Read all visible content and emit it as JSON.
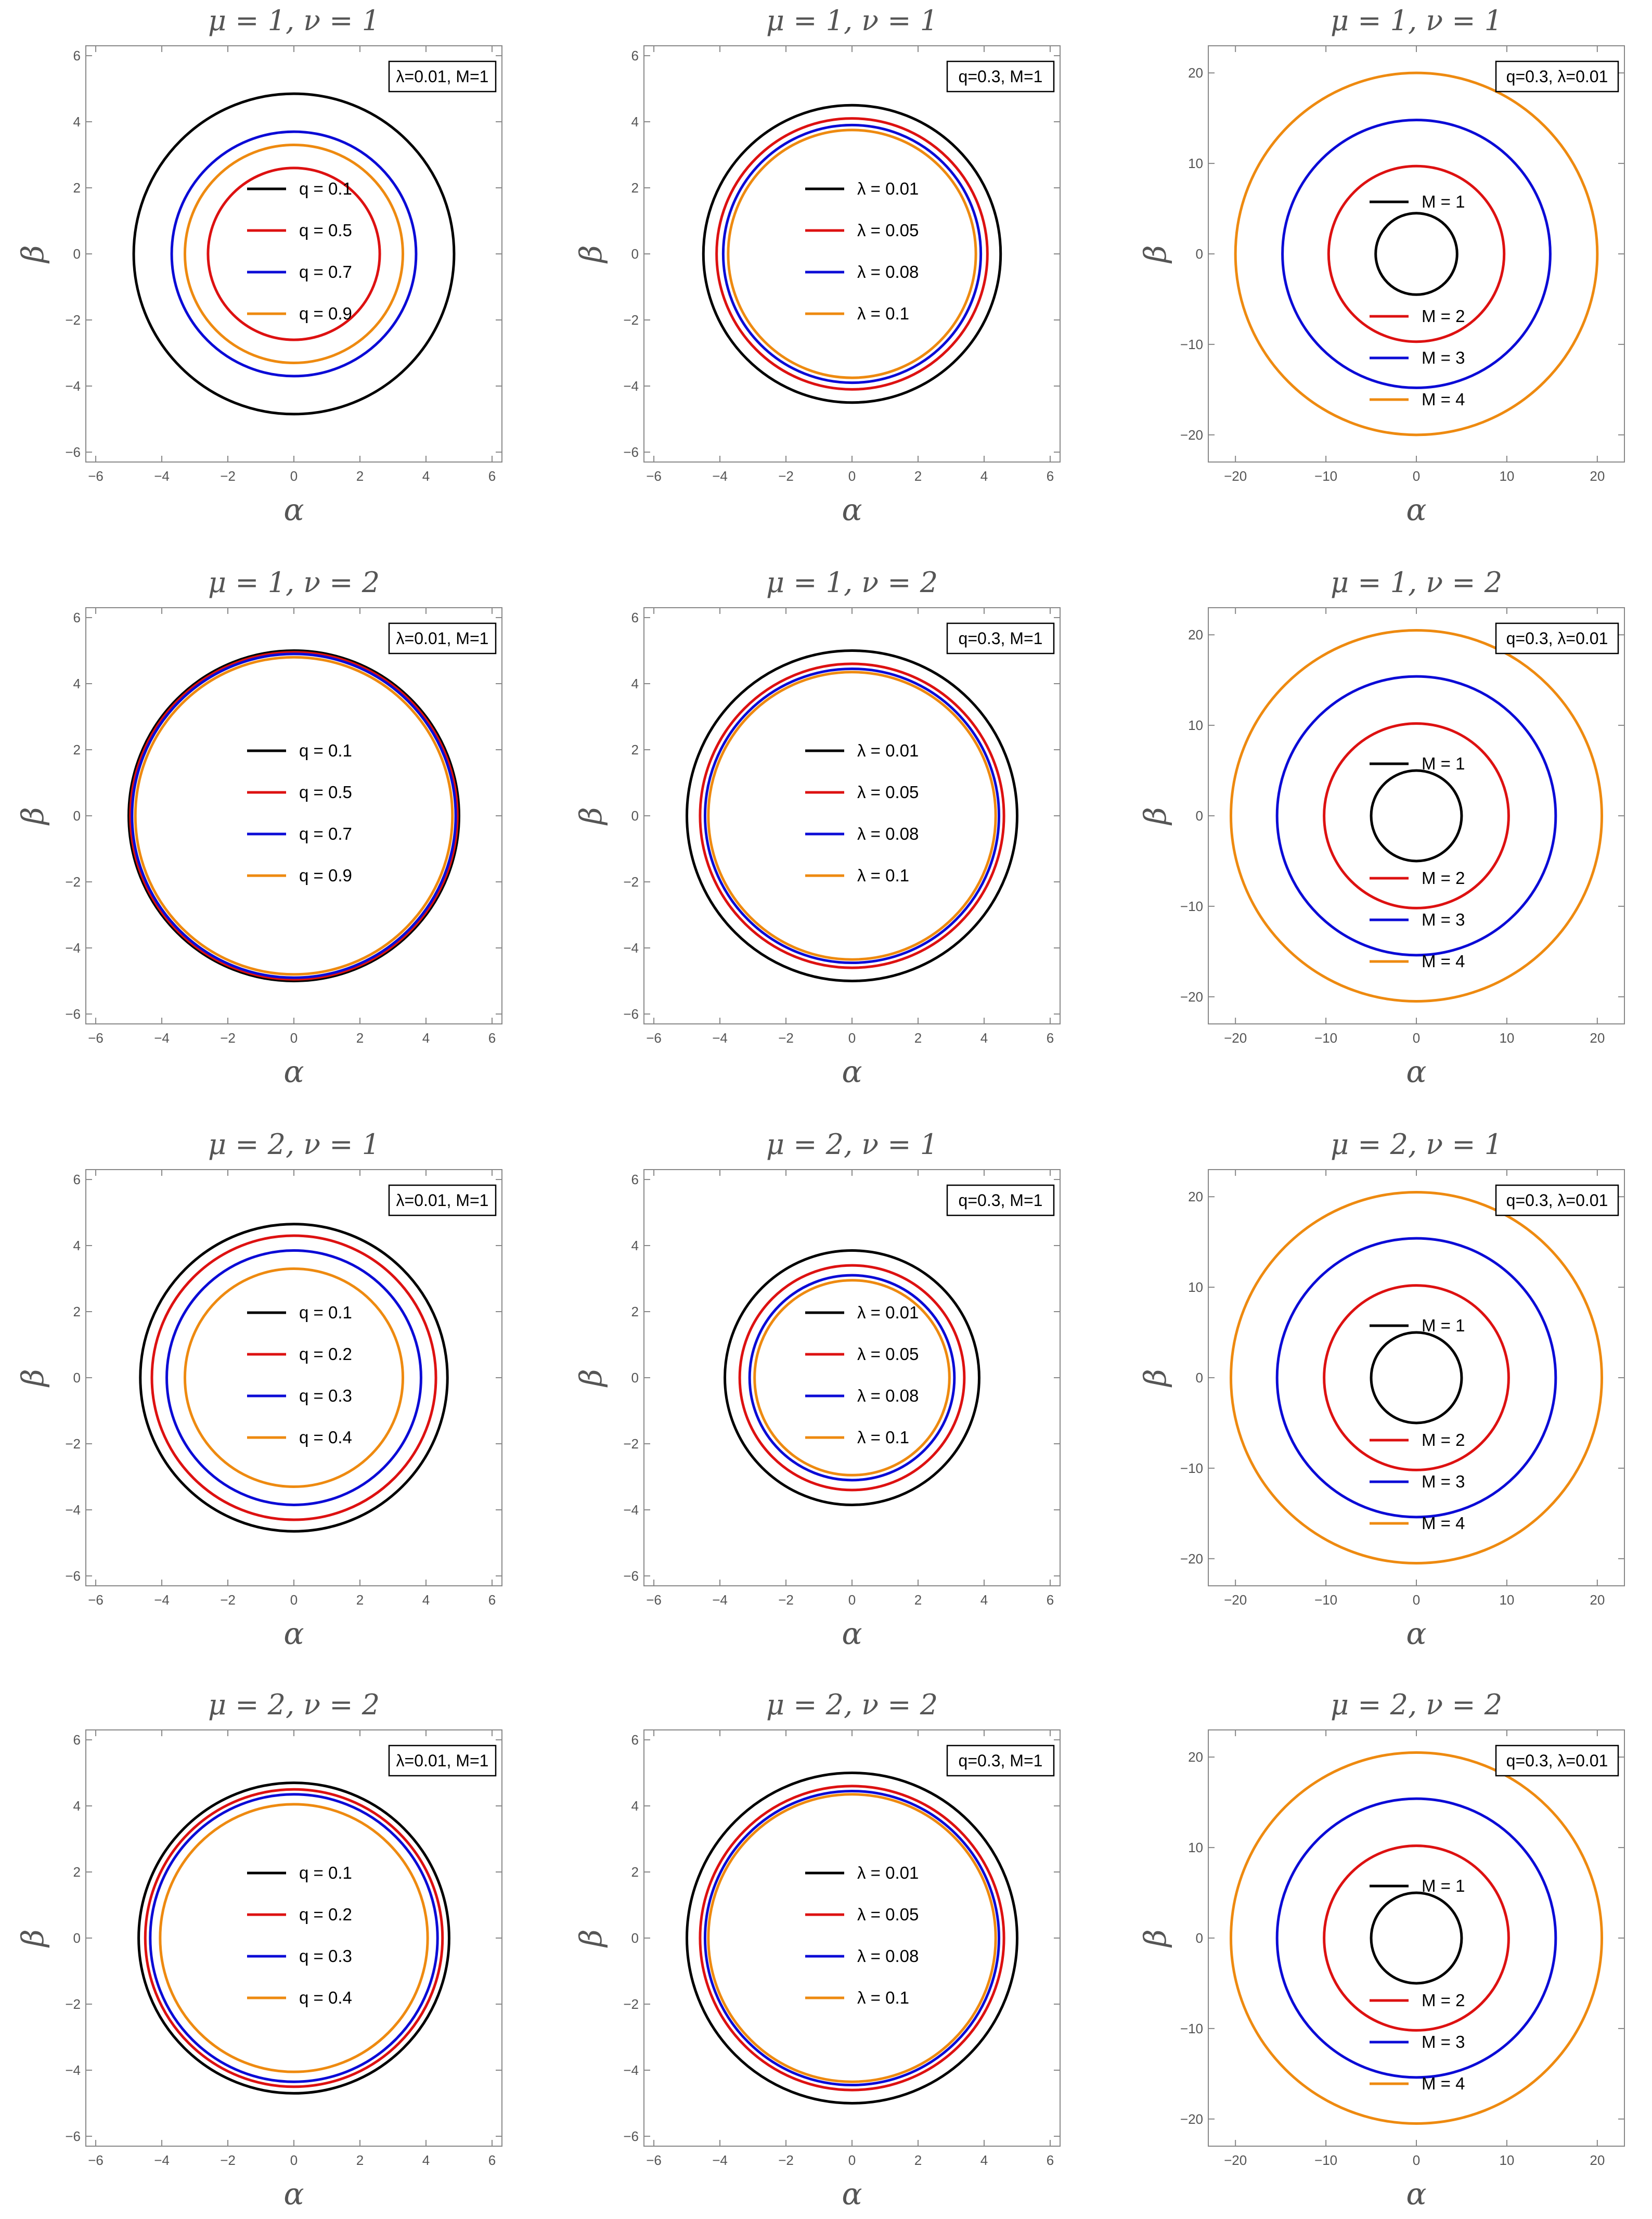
{
  "colors": {
    "black": "#000000",
    "red": "#dd1111",
    "blue": "#0b0bd6",
    "orange": "#ee8a10",
    "text": "#555555",
    "frame": "#888888"
  },
  "chart_data": [
    {
      "type": "line",
      "title": "μ = 1, ν = 1",
      "xlabel": "α",
      "ylabel": "β",
      "param_label": "λ=0.01, M=1",
      "xlim": [
        -6.3,
        6.3
      ],
      "ylim": [
        -6.3,
        6.3
      ],
      "xticks": [
        -6,
        -4,
        -2,
        0,
        2,
        4,
        6
      ],
      "yticks": [
        -6,
        -4,
        -2,
        0,
        2,
        4,
        6
      ],
      "legend_placement": "center",
      "series": [
        {
          "name": "q = 0.1",
          "color": "#000000",
          "radius": 4.85
        },
        {
          "name": "q = 0.5",
          "color": "#dd1111",
          "radius": 2.6
        },
        {
          "name": "q = 0.7",
          "color": "#0b0bd6",
          "radius": 3.7
        },
        {
          "name": "q = 0.9",
          "color": "#ee8a10",
          "radius": 3.3
        }
      ]
    },
    {
      "type": "line",
      "title": "μ = 1, ν = 1",
      "xlabel": "α",
      "ylabel": "β",
      "param_label": "q=0.3, M=1",
      "xlim": [
        -6.3,
        6.3
      ],
      "ylim": [
        -6.3,
        6.3
      ],
      "xticks": [
        -6,
        -4,
        -2,
        0,
        2,
        4,
        6
      ],
      "yticks": [
        -6,
        -4,
        -2,
        0,
        2,
        4,
        6
      ],
      "legend_placement": "center",
      "series": [
        {
          "name": "λ = 0.01",
          "color": "#000000",
          "radius": 4.5
        },
        {
          "name": "λ = 0.05",
          "color": "#dd1111",
          "radius": 4.1
        },
        {
          "name": "λ = 0.08",
          "color": "#0b0bd6",
          "radius": 3.9
        },
        {
          "name": "λ = 0.1",
          "color": "#ee8a10",
          "radius": 3.75
        }
      ]
    },
    {
      "type": "line",
      "title": "μ = 1, ν = 1",
      "xlabel": "α",
      "ylabel": "β",
      "param_label": "q=0.3, λ=0.01",
      "xlim": [
        -23,
        23
      ],
      "ylim": [
        -23,
        23
      ],
      "xticks": [
        -20,
        -10,
        0,
        10,
        20
      ],
      "yticks": [
        -20,
        -10,
        0,
        10,
        20
      ],
      "legend_placement": "center",
      "series": [
        {
          "name": "M = 1",
          "color": "#000000",
          "radius": 4.5
        },
        {
          "name": "M = 2",
          "color": "#dd1111",
          "radius": 9.7
        },
        {
          "name": "M = 3",
          "color": "#0b0bd6",
          "radius": 14.8
        },
        {
          "name": "M = 4",
          "color": "#ee8a10",
          "radius": 20
        }
      ]
    },
    {
      "type": "line",
      "title": "μ = 1, ν = 2",
      "xlabel": "α",
      "ylabel": "β",
      "param_label": "λ=0.01, M=1",
      "xlim": [
        -6.3,
        6.3
      ],
      "ylim": [
        -6.3,
        6.3
      ],
      "xticks": [
        -6,
        -4,
        -2,
        0,
        2,
        4,
        6
      ],
      "yticks": [
        -6,
        -4,
        -2,
        0,
        2,
        4,
        6
      ],
      "legend_placement": "center",
      "series": [
        {
          "name": "q = 0.1",
          "color": "#000000",
          "radius": 5.0
        },
        {
          "name": "q = 0.5",
          "color": "#dd1111",
          "radius": 4.95
        },
        {
          "name": "q = 0.7",
          "color": "#0b0bd6",
          "radius": 4.9
        },
        {
          "name": "q = 0.9",
          "color": "#ee8a10",
          "radius": 4.8
        }
      ]
    },
    {
      "type": "line",
      "title": "μ = 1, ν = 2",
      "xlabel": "α",
      "ylabel": "β",
      "param_label": "q=0.3, M=1",
      "xlim": [
        -6.3,
        6.3
      ],
      "ylim": [
        -6.3,
        6.3
      ],
      "xticks": [
        -6,
        -4,
        -2,
        0,
        2,
        4,
        6
      ],
      "yticks": [
        -6,
        -4,
        -2,
        0,
        2,
        4,
        6
      ],
      "legend_placement": "center",
      "series": [
        {
          "name": "λ = 0.01",
          "color": "#000000",
          "radius": 5.0
        },
        {
          "name": "λ = 0.05",
          "color": "#dd1111",
          "radius": 4.6
        },
        {
          "name": "λ = 0.08",
          "color": "#0b0bd6",
          "radius": 4.45
        },
        {
          "name": "λ = 0.1",
          "color": "#ee8a10",
          "radius": 4.35
        }
      ]
    },
    {
      "type": "line",
      "title": "μ = 1, ν = 2",
      "xlabel": "α",
      "ylabel": "β",
      "param_label": "q=0.3, λ=0.01",
      "xlim": [
        -23,
        23
      ],
      "ylim": [
        -23,
        23
      ],
      "xticks": [
        -20,
        -10,
        0,
        10,
        20
      ],
      "yticks": [
        -20,
        -10,
        0,
        10,
        20
      ],
      "legend_placement": "center",
      "series": [
        {
          "name": "M = 1",
          "color": "#000000",
          "radius": 5
        },
        {
          "name": "M = 2",
          "color": "#dd1111",
          "radius": 10.2
        },
        {
          "name": "M = 3",
          "color": "#0b0bd6",
          "radius": 15.4
        },
        {
          "name": "M = 4",
          "color": "#ee8a10",
          "radius": 20.5
        }
      ]
    },
    {
      "type": "line",
      "title": "μ = 2, ν = 1",
      "xlabel": "α",
      "ylabel": "β",
      "param_label": "λ=0.01, M=1",
      "xlim": [
        -6.3,
        6.3
      ],
      "ylim": [
        -6.3,
        6.3
      ],
      "xticks": [
        -6,
        -4,
        -2,
        0,
        2,
        4,
        6
      ],
      "yticks": [
        -6,
        -4,
        -2,
        0,
        2,
        4,
        6
      ],
      "legend_placement": "center",
      "series": [
        {
          "name": "q = 0.1",
          "color": "#000000",
          "radius": 4.65
        },
        {
          "name": "q = 0.2",
          "color": "#dd1111",
          "radius": 4.3
        },
        {
          "name": "q = 0.3",
          "color": "#0b0bd6",
          "radius": 3.85
        },
        {
          "name": "q = 0.4",
          "color": "#ee8a10",
          "radius": 3.3
        }
      ]
    },
    {
      "type": "line",
      "title": "μ = 2, ν = 1",
      "xlabel": "α",
      "ylabel": "β",
      "param_label": "q=0.3, M=1",
      "xlim": [
        -6.3,
        6.3
      ],
      "ylim": [
        -6.3,
        6.3
      ],
      "xticks": [
        -6,
        -4,
        -2,
        0,
        2,
        4,
        6
      ],
      "yticks": [
        -6,
        -4,
        -2,
        0,
        2,
        4,
        6
      ],
      "legend_placement": "center",
      "series": [
        {
          "name": "λ = 0.01",
          "color": "#000000",
          "radius": 3.85
        },
        {
          "name": "λ = 0.05",
          "color": "#dd1111",
          "radius": 3.4
        },
        {
          "name": "λ = 0.08",
          "color": "#0b0bd6",
          "radius": 3.1
        },
        {
          "name": "λ = 0.1",
          "color": "#ee8a10",
          "radius": 2.95
        }
      ]
    },
    {
      "type": "line",
      "title": "μ = 2, ν = 1",
      "xlabel": "α",
      "ylabel": "β",
      "param_label": "q=0.3, λ=0.01",
      "xlim": [
        -23,
        23
      ],
      "ylim": [
        -23,
        23
      ],
      "xticks": [
        -20,
        -10,
        0,
        10,
        20
      ],
      "yticks": [
        -20,
        -10,
        0,
        10,
        20
      ],
      "legend_placement": "center",
      "series": [
        {
          "name": "M = 1",
          "color": "#000000",
          "radius": 5
        },
        {
          "name": "M = 2",
          "color": "#dd1111",
          "radius": 10.2
        },
        {
          "name": "M = 3",
          "color": "#0b0bd6",
          "radius": 15.4
        },
        {
          "name": "M = 4",
          "color": "#ee8a10",
          "radius": 20.5
        }
      ]
    },
    {
      "type": "line",
      "title": "μ = 2, ν = 2",
      "xlabel": "α",
      "ylabel": "β",
      "param_label": "λ=0.01, M=1",
      "xlim": [
        -6.3,
        6.3
      ],
      "ylim": [
        -6.3,
        6.3
      ],
      "xticks": [
        -6,
        -4,
        -2,
        0,
        2,
        4,
        6
      ],
      "yticks": [
        -6,
        -4,
        -2,
        0,
        2,
        4,
        6
      ],
      "legend_placement": "center",
      "series": [
        {
          "name": "q = 0.1",
          "color": "#000000",
          "radius": 4.7
        },
        {
          "name": "q = 0.2",
          "color": "#dd1111",
          "radius": 4.5
        },
        {
          "name": "q = 0.3",
          "color": "#0b0bd6",
          "radius": 4.35
        },
        {
          "name": "q = 0.4",
          "color": "#ee8a10",
          "radius": 4.05
        }
      ]
    },
    {
      "type": "line",
      "title": "μ = 2, ν = 2",
      "xlabel": "α",
      "ylabel": "β",
      "param_label": "q=0.3, M=1",
      "xlim": [
        -6.3,
        6.3
      ],
      "ylim": [
        -6.3,
        6.3
      ],
      "xticks": [
        -6,
        -4,
        -2,
        0,
        2,
        4,
        6
      ],
      "yticks": [
        -6,
        -4,
        -2,
        0,
        2,
        4,
        6
      ],
      "legend_placement": "center",
      "series": [
        {
          "name": "λ = 0.01",
          "color": "#000000",
          "radius": 5.0
        },
        {
          "name": "λ = 0.05",
          "color": "#dd1111",
          "radius": 4.6
        },
        {
          "name": "λ = 0.08",
          "color": "#0b0bd6",
          "radius": 4.45
        },
        {
          "name": "λ = 0.1",
          "color": "#ee8a10",
          "radius": 4.35
        }
      ]
    },
    {
      "type": "line",
      "title": "μ = 2, ν = 2",
      "xlabel": "α",
      "ylabel": "β",
      "param_label": "q=0.3, λ=0.01",
      "xlim": [
        -23,
        23
      ],
      "ylim": [
        -23,
        23
      ],
      "xticks": [
        -20,
        -10,
        0,
        10,
        20
      ],
      "yticks": [
        -20,
        -10,
        0,
        10,
        20
      ],
      "legend_placement": "center",
      "series": [
        {
          "name": "M = 1",
          "color": "#000000",
          "radius": 5
        },
        {
          "name": "M = 2",
          "color": "#dd1111",
          "radius": 10.2
        },
        {
          "name": "M = 3",
          "color": "#0b0bd6",
          "radius": 15.4
        },
        {
          "name": "M = 4",
          "color": "#ee8a10",
          "radius": 20.5
        }
      ]
    }
  ]
}
